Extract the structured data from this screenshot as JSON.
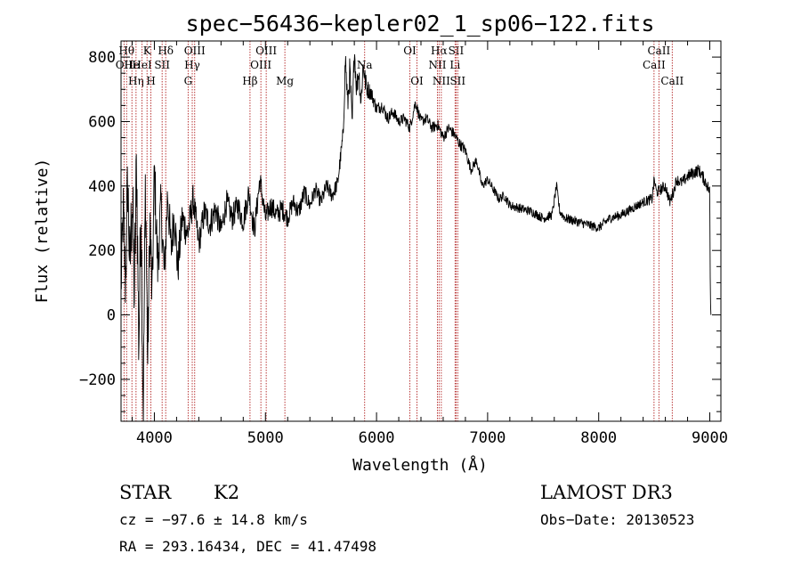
{
  "chart_data": {
    "type": "line",
    "title": "spec−56436−kepler02_1_sp06−122.fits",
    "xlabel": "Wavelength (Å)",
    "ylabel": "Flux (relative)",
    "xlim": [
      3700,
      9100
    ],
    "ylim": [
      -330,
      850
    ],
    "xticks": [
      {
        "value": 4000,
        "label": "4000"
      },
      {
        "value": 5000,
        "label": "5000"
      },
      {
        "value": 6000,
        "label": "6000"
      },
      {
        "value": 7000,
        "label": "7000"
      },
      {
        "value": 8000,
        "label": "8000"
      },
      {
        "value": 9000,
        "label": "9000"
      }
    ],
    "yticks": [
      {
        "value": -200,
        "label": "−200"
      },
      {
        "value": 0,
        "label": "0"
      },
      {
        "value": 200,
        "label": "200"
      },
      {
        "value": 400,
        "label": "400"
      },
      {
        "value": 600,
        "label": "600"
      },
      {
        "value": 800,
        "label": "800"
      }
    ],
    "grid": false,
    "series": [
      {
        "line_color": "#000000",
        "x": [
          3700,
          3720,
          3740,
          3760,
          3780,
          3800,
          3820,
          3840,
          3860,
          3880,
          3900,
          3920,
          3940,
          3960,
          3980,
          4000,
          4030,
          4060,
          4090,
          4120,
          4150,
          4180,
          4210,
          4250,
          4300,
          4350,
          4400,
          4450,
          4500,
          4550,
          4600,
          4650,
          4700,
          4750,
          4800,
          4850,
          4900,
          4950,
          5000,
          5050,
          5100,
          5150,
          5200,
          5250,
          5300,
          5350,
          5400,
          5450,
          5500,
          5550,
          5600,
          5650,
          5700,
          5720,
          5740,
          5760,
          5780,
          5800,
          5820,
          5840,
          5860,
          5880,
          5900,
          5920,
          5950,
          6000,
          6050,
          6100,
          6150,
          6200,
          6250,
          6300,
          6350,
          6400,
          6450,
          6500,
          6550,
          6600,
          6650,
          6700,
          6750,
          6800,
          6850,
          6900,
          6950,
          7000,
          7050,
          7100,
          7150,
          7200,
          7300,
          7400,
          7500,
          7580,
          7620,
          7650,
          7700,
          7800,
          7900,
          8000,
          8100,
          8200,
          8300,
          8400,
          8480,
          8500,
          8520,
          8560,
          8600,
          8640,
          8680,
          8700,
          8750,
          8800,
          8850,
          8900,
          8950,
          8980,
          9000,
          9005,
          9010
        ],
        "y": [
          80,
          320,
          100,
          420,
          130,
          380,
          60,
          480,
          -100,
          350,
          -300,
          420,
          -150,
          300,
          40,
          450,
          150,
          340,
          120,
          380,
          200,
          320,
          140,
          300,
          250,
          360,
          220,
          320,
          280,
          330,
          260,
          350,
          300,
          340,
          290,
          380,
          260,
          420,
          300,
          340,
          310,
          330,
          300,
          350,
          320,
          380,
          340,
          390,
          350,
          400,
          370,
          410,
          560,
          800,
          650,
          760,
          580,
          830,
          700,
          760,
          660,
          780,
          720,
          700,
          690,
          640,
          650,
          610,
          630,
          600,
          610,
          580,
          660,
          600,
          610,
          580,
          590,
          550,
          580,
          560,
          530,
          510,
          450,
          480,
          400,
          420,
          390,
          360,
          370,
          340,
          330,
          320,
          300,
          310,
          400,
          320,
          300,
          290,
          280,
          270,
          300,
          310,
          330,
          350,
          360,
          420,
          380,
          390,
          400,
          350,
          390,
          420,
          410,
          430,
          440,
          450,
          420,
          400,
          380,
          50,
          0
        ],
        "noise_amplitude": [
          90,
          110,
          120,
          130,
          140,
          150,
          160,
          150,
          140,
          140,
          140,
          130,
          120,
          110,
          100,
          100,
          90,
          85,
          80,
          80,
          75,
          70,
          70,
          60,
          55,
          50,
          45,
          45,
          45,
          45,
          40,
          40,
          40,
          40,
          40,
          40,
          40,
          40,
          35,
          35,
          35,
          35,
          30,
          30,
          30,
          30,
          25,
          25,
          25,
          25,
          25,
          25,
          30,
          40,
          50,
          50,
          50,
          40,
          40,
          40,
          40,
          40,
          35,
          30,
          25,
          20,
          20,
          20,
          20,
          18,
          18,
          18,
          18,
          18,
          18,
          18,
          18,
          18,
          18,
          18,
          18,
          18,
          15,
          15,
          15,
          15,
          15,
          15,
          15,
          15,
          15,
          15,
          15,
          15,
          15,
          15,
          15,
          15,
          15,
          15,
          15,
          15,
          15,
          15,
          18,
          18,
          18,
          18,
          18,
          18,
          18,
          18,
          18,
          20,
          20,
          20,
          20,
          20,
          20,
          0,
          0
        ]
      }
    ],
    "line_markers": {
      "color": "#b22222",
      "lines": [
        {
          "x": 3727,
          "label": "OII",
          "row": 1
        },
        {
          "x": 3750,
          "label": "Hθ",
          "row": 0
        },
        {
          "x": 3798,
          "label": "He",
          "row": 1
        },
        {
          "x": 3835,
          "label": "Hη",
          "row": 2
        },
        {
          "x": 3889,
          "label": "HeI",
          "row": 1
        },
        {
          "x": 3934,
          "label": "K",
          "row": 0
        },
        {
          "x": 3969,
          "label": "H",
          "row": 2
        },
        {
          "x": 4070,
          "label": "SII",
          "row": 1
        },
        {
          "x": 4102,
          "label": "Hδ",
          "row": 0
        },
        {
          "x": 4304,
          "label": "G",
          "row": 2
        },
        {
          "x": 4341,
          "label": "Hγ",
          "row": 1
        },
        {
          "x": 4363,
          "label": "OIII",
          "row": 0
        },
        {
          "x": 4861,
          "label": "Hβ",
          "row": 2
        },
        {
          "x": 4959,
          "label": "OIII",
          "row": 1
        },
        {
          "x": 5007,
          "label": "OIII",
          "row": 0
        },
        {
          "x": 5175,
          "label": "Mg",
          "row": 2
        },
        {
          "x": 5893,
          "label": "Na",
          "row": 1
        },
        {
          "x": 6300,
          "label": "OI",
          "row": 0
        },
        {
          "x": 6364,
          "label": "OI",
          "row": 2
        },
        {
          "x": 6548,
          "label": "NII",
          "row": 1
        },
        {
          "x": 6563,
          "label": "Hα",
          "row": 0
        },
        {
          "x": 6583,
          "label": "NII",
          "row": 2
        },
        {
          "x": 6707,
          "label": "Li",
          "row": 1
        },
        {
          "x": 6716,
          "label": "SII",
          "row": 0
        },
        {
          "x": 6731,
          "label": "SII",
          "row": 2
        },
        {
          "x": 8498,
          "label": "CaII",
          "row": 1
        },
        {
          "x": 8542,
          "label": "CaII",
          "row": 0
        },
        {
          "x": 8662,
          "label": "CaII",
          "row": 2
        }
      ]
    }
  },
  "info": {
    "object_class": "STAR",
    "subclass": "K2",
    "survey": "LAMOST DR3",
    "redshift": "cz = −97.6 ± 14.8 km/s",
    "obs_date": "Obs−Date: 20130523",
    "coords": "RA = 293.16434, DEC =  41.47498"
  }
}
